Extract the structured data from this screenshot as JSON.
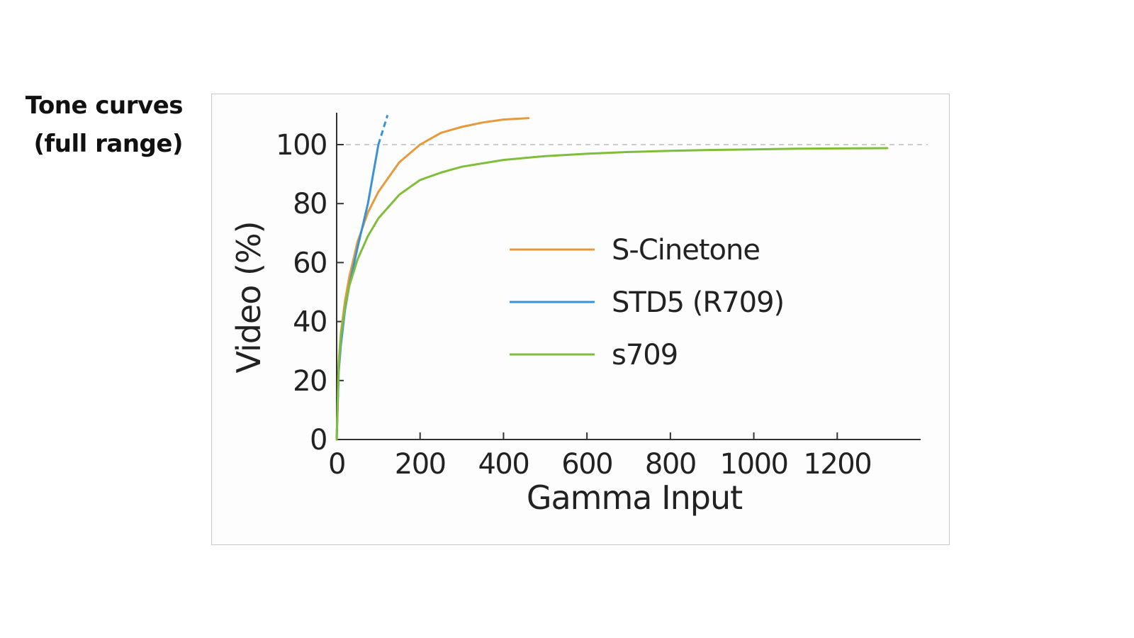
{
  "slide": {
    "title_lines": [
      "Tone curves",
      "(full range)"
    ]
  },
  "chart_data": {
    "type": "line",
    "title": "",
    "xlabel": "Gamma Input",
    "ylabel": "Video (%)",
    "xlim": [
      0,
      1400
    ],
    "ylim": [
      0,
      110
    ],
    "x_ticks": [
      0,
      200,
      400,
      600,
      800,
      1000,
      1200
    ],
    "y_ticks": [
      0,
      20,
      40,
      60,
      80,
      100
    ],
    "reference_lines": [
      {
        "axis": "y",
        "value": 100,
        "style": "dashed",
        "color": "#bbbbbb"
      }
    ],
    "grid": false,
    "legend": {
      "placement": "center-right"
    },
    "series": [
      {
        "name": "S-Cinetone",
        "color": "#e69a3c",
        "x": [
          0,
          5,
          10,
          20,
          30,
          50,
          75,
          100,
          150,
          200,
          250,
          300,
          350,
          400,
          460
        ],
        "y": [
          0,
          26,
          36,
          47,
          55,
          67,
          77,
          84,
          94,
          100,
          104,
          106,
          107.5,
          108.5,
          109
        ]
      },
      {
        "name": "STD5 (R709)",
        "color": "#3a92d6",
        "x": [
          0,
          5,
          10,
          20,
          30,
          50,
          75,
          100
        ],
        "y": [
          0,
          23,
          32,
          44,
          52,
          65,
          80,
          100
        ],
        "extension": {
          "style": "dashed",
          "x": [
            100,
            122
          ],
          "y": [
            100,
            110
          ]
        }
      },
      {
        "name": "s709",
        "color": "#7fbd3a",
        "x": [
          0,
          5,
          10,
          20,
          30,
          50,
          75,
          100,
          150,
          200,
          250,
          300,
          400,
          500,
          600,
          700,
          800,
          900,
          1000,
          1100,
          1200,
          1320
        ],
        "y": [
          0,
          25,
          35,
          45,
          52,
          61,
          69,
          75,
          83,
          88,
          90.5,
          92.5,
          94.8,
          96.1,
          96.9,
          97.5,
          97.9,
          98.2,
          98.4,
          98.6,
          98.7,
          98.8
        ]
      }
    ]
  }
}
